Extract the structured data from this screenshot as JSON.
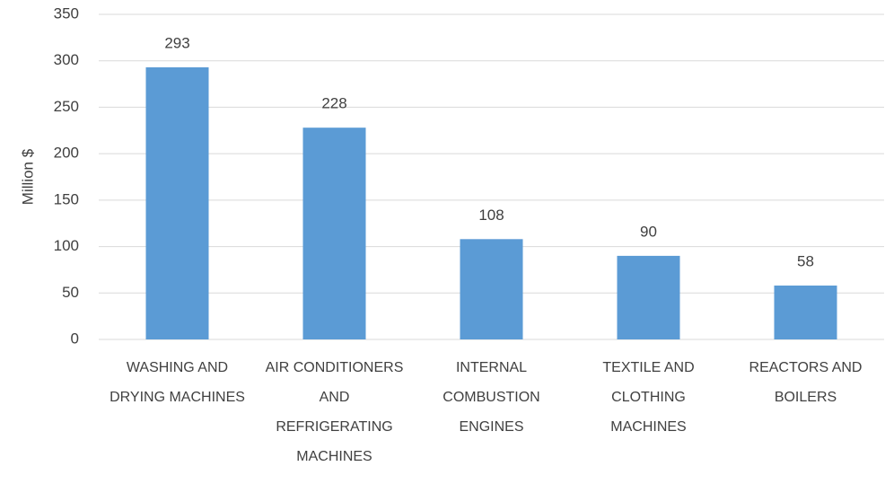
{
  "chart_data": {
    "type": "bar",
    "y_label": "Million $",
    "categories": [
      "WASHING AND DRYING MACHINES",
      "AIR CONDITIONERS AND REFRIGERATING MACHINES",
      "INTERNAL COMBUSTION ENGINES",
      "TEXTILE AND CLOTHING MACHINES",
      "REACTORS AND BOILERS"
    ],
    "values": [
      293,
      228,
      108,
      90,
      58
    ],
    "color": "#5b9bd5",
    "ylim": [
      0,
      350
    ],
    "yticks": [
      0,
      50,
      100,
      150,
      200,
      250,
      300,
      350
    ],
    "grid": true
  }
}
